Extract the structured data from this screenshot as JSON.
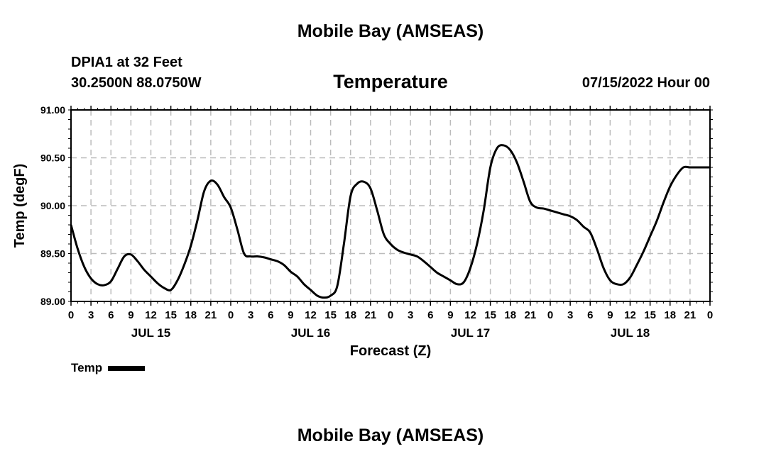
{
  "header": {
    "title": "Mobile Bay (AMSEAS)",
    "station": "DPIA1 at 32 Feet",
    "coords": "30.2500N  88.0750W",
    "variable": "Temperature",
    "timestamp": "07/15/2022 Hour 00"
  },
  "footer": {
    "title": "Mobile Bay (AMSEAS)"
  },
  "legend": {
    "label": "Temp",
    "color": "#000000"
  },
  "chart_data": {
    "type": "line",
    "title": "Temperature",
    "xlabel": "Forecast (Z)",
    "ylabel": "Temp (degF)",
    "xlim": [
      0,
      96
    ],
    "ylim": [
      89.0,
      91.0
    ],
    "grid": true,
    "y_ticks": [
      "89.00",
      "89.50",
      "90.00",
      "90.50",
      "91.00"
    ],
    "x_tick_labels": [
      "0",
      "3",
      "6",
      "9",
      "12",
      "15",
      "18",
      "21",
      "0",
      "3",
      "6",
      "9",
      "12",
      "15",
      "18",
      "21",
      "0",
      "3",
      "6",
      "9",
      "12",
      "15",
      "18",
      "21",
      "0",
      "3",
      "6",
      "9",
      "12",
      "15",
      "18",
      "21",
      "0"
    ],
    "day_labels": [
      {
        "label": "JUL 15",
        "hour": 12
      },
      {
        "label": "JUL 16",
        "hour": 36
      },
      {
        "label": "JUL 17",
        "hour": 60
      },
      {
        "label": "JUL 18",
        "hour": 84
      }
    ],
    "series": [
      {
        "name": "Temp",
        "x": [
          0,
          1,
          2,
          3,
          4,
          5,
          6,
          7,
          8,
          9,
          10,
          11,
          12,
          13,
          14,
          15,
          16,
          17,
          18,
          19,
          20,
          21,
          22,
          23,
          24,
          25,
          26,
          27,
          28,
          29,
          30,
          31,
          32,
          33,
          34,
          35,
          36,
          37,
          38,
          39,
          40,
          41,
          42,
          43,
          44,
          45,
          46,
          47,
          48,
          49,
          50,
          51,
          52,
          53,
          54,
          55,
          56,
          57,
          58,
          59,
          60,
          61,
          62,
          63,
          64,
          65,
          66,
          67,
          68,
          69,
          70,
          71,
          72,
          73,
          74,
          75,
          76,
          77,
          78,
          79,
          80,
          81,
          82,
          83,
          84,
          85,
          86,
          87,
          88,
          89,
          90,
          91,
          92,
          93,
          94,
          95,
          96
        ],
        "values": [
          89.8,
          89.55,
          89.36,
          89.24,
          89.18,
          89.17,
          89.21,
          89.34,
          89.47,
          89.49,
          89.42,
          89.33,
          89.26,
          89.19,
          89.14,
          89.12,
          89.22,
          89.38,
          89.58,
          89.85,
          90.15,
          90.26,
          90.22,
          90.09,
          89.98,
          89.75,
          89.5,
          89.47,
          89.47,
          89.46,
          89.44,
          89.42,
          89.38,
          89.31,
          89.26,
          89.18,
          89.12,
          89.06,
          89.04,
          89.06,
          89.16,
          89.6,
          90.1,
          90.23,
          90.25,
          90.18,
          89.95,
          89.7,
          89.6,
          89.54,
          89.51,
          89.49,
          89.47,
          89.42,
          89.36,
          89.3,
          89.26,
          89.22,
          89.18,
          89.2,
          89.35,
          89.6,
          89.95,
          90.4,
          90.6,
          90.63,
          90.58,
          90.45,
          90.25,
          90.04,
          89.98,
          89.97,
          89.95,
          89.93,
          89.91,
          89.89,
          89.85,
          89.78,
          89.72,
          89.55,
          89.35,
          89.22,
          89.18,
          89.18,
          89.25,
          89.38,
          89.52,
          89.68,
          89.84,
          90.03,
          90.2,
          90.32,
          90.4,
          90.4,
          90.4,
          90.4,
          90.4
        ]
      }
    ]
  }
}
